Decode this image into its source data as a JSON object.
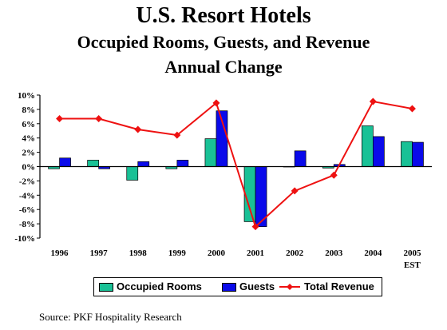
{
  "title": "U.S. Resort Hotels",
  "subtitle": "Occupied Rooms, Guests, and Revenue",
  "subtitle2": "Annual Change",
  "source": "Source: PKF Hospitality Research",
  "colors": {
    "occupied": "#19c196",
    "guests": "#0a0aea",
    "revenue": "#ee1111",
    "axis": "#000000"
  },
  "chart_data": {
    "type": "bar",
    "categories": [
      "1996",
      "1997",
      "1998",
      "1999",
      "2000",
      "2001",
      "2002",
      "2003",
      "2004",
      "2005"
    ],
    "category_sublabels": [
      "",
      "",
      "",
      "",
      "",
      "",
      "",
      "",
      "",
      "EST"
    ],
    "series": [
      {
        "name": "Occupied Rooms",
        "type": "bar",
        "values": [
          -0.3,
          0.9,
          -1.9,
          -0.3,
          3.9,
          -7.7,
          0.0,
          -0.2,
          5.7,
          3.5
        ]
      },
      {
        "name": "Guests",
        "type": "bar",
        "values": [
          1.2,
          -0.3,
          0.7,
          0.9,
          7.8,
          -8.4,
          2.2,
          0.3,
          4.2,
          3.4
        ]
      },
      {
        "name": "Total Revenue",
        "type": "line",
        "values": [
          6.7,
          6.7,
          5.2,
          4.4,
          8.9,
          -8.4,
          -3.4,
          -1.2,
          9.1,
          8.1
        ]
      }
    ],
    "yticks": [
      "10%",
      "8%",
      "6%",
      "4%",
      "2%",
      "0%",
      "-2%",
      "-4%",
      "-6%",
      "-8%",
      "-10%"
    ],
    "ylim": [
      -10,
      10
    ],
    "grid": false,
    "legend_position": "bottom"
  }
}
